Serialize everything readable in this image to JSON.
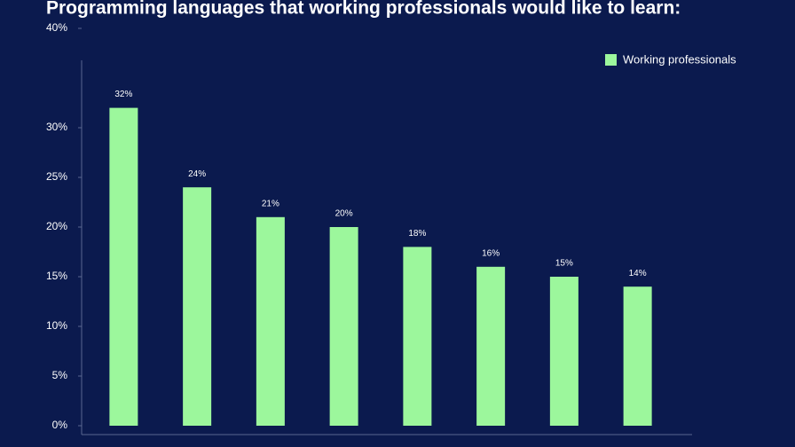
{
  "chart_data": {
    "type": "bar",
    "title": "Programming languages that working professionals would like to learn:",
    "categories": [
      null,
      null,
      null,
      null,
      null,
      null,
      null,
      null
    ],
    "series": [
      {
        "name": "Working professionals",
        "color": "#9cf79c",
        "values": [
          32,
          24,
          21,
          20,
          18,
          16,
          15,
          14
        ],
        "value_labels": [
          "32%",
          "24%",
          "21%",
          "20%",
          "18%",
          "16%",
          "15%",
          "14%"
        ]
      }
    ],
    "ylim": [
      0,
      40
    ],
    "yticks": [
      {
        "value": 0,
        "label": "0%"
      },
      {
        "value": 5,
        "label": "5%"
      },
      {
        "value": 10,
        "label": "10%"
      },
      {
        "value": 15,
        "label": "15%"
      },
      {
        "value": 20,
        "label": "20%"
      },
      {
        "value": 25,
        "label": "25%"
      },
      {
        "value": 30,
        "label": "30%"
      },
      {
        "value": 40,
        "label": "40%"
      }
    ],
    "grid": false,
    "legend": "top-right"
  }
}
